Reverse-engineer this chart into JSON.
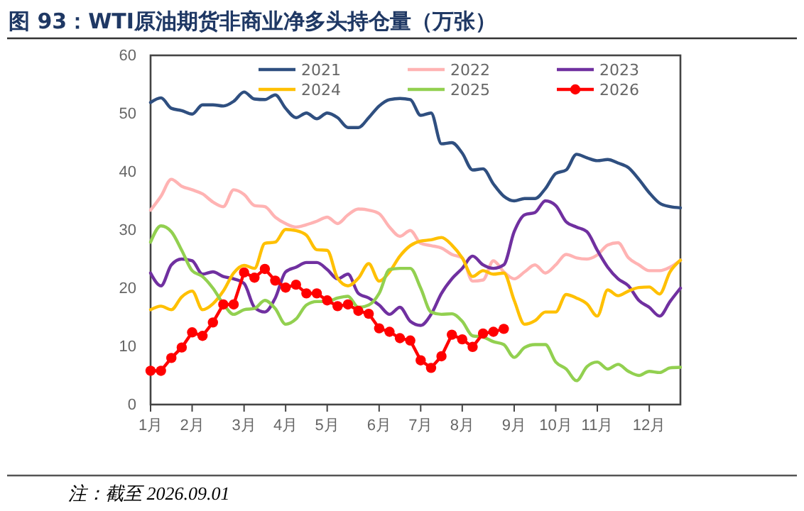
{
  "chart_data": {
    "type": "line",
    "title": "图 93：WTI原油期货非商业净多头持仓量（万张）",
    "annotations": [
      "注：截至 2026.09.01"
    ],
    "categories": [
      "1月",
      null,
      null,
      null,
      "2月",
      null,
      null,
      null,
      null,
      "3月",
      null,
      null,
      null,
      "4月",
      null,
      null,
      null,
      "5月",
      null,
      null,
      null,
      null,
      "6月",
      null,
      null,
      null,
      "7月",
      null,
      null,
      null,
      "8月",
      null,
      null,
      null,
      null,
      "9月",
      null,
      null,
      null,
      "10月",
      null,
      null,
      null,
      "11月",
      null,
      null,
      null,
      null,
      "12月",
      null,
      null,
      null
    ],
    "ylim": [
      0,
      60
    ],
    "yticks": [
      0,
      10,
      20,
      30,
      40,
      50,
      60
    ],
    "grid": false,
    "legend": "top",
    "line_style": "solid",
    "series": [
      {
        "name": "2021",
        "color": "#2f4f80",
        "marker": "none",
        "values": [
          51.9,
          52.7,
          50.9,
          50.5,
          49.9,
          51.5,
          51.5,
          51.3,
          52.1,
          53.7,
          52.5,
          52.4,
          53.2,
          50.9,
          49.3,
          50.1,
          49.1,
          50.1,
          49.3,
          47.6,
          47.6,
          49.3,
          51.3,
          52.4,
          52.6,
          52.4,
          49.7,
          50.1,
          44.8,
          45,
          43.2,
          40.3,
          40.5,
          37.9,
          35.8,
          35.0,
          35.4,
          35.4,
          37.1,
          39.7,
          40.3,
          43,
          42.4,
          41.9,
          42.1,
          41.5,
          40.7,
          38.7,
          36.4,
          34.6,
          34.0,
          33.8
        ]
      },
      {
        "name": "2022",
        "color": "#ffb3b3",
        "marker": "none",
        "values": [
          33.4,
          35.8,
          38.7,
          37.5,
          36.9,
          36.2,
          34.8,
          34,
          36.9,
          36.1,
          34.2,
          34,
          32.2,
          31.1,
          30.5,
          30.9,
          31.5,
          32.2,
          31.1,
          32.6,
          33.6,
          33.4,
          32.8,
          30.5,
          28.9,
          29.9,
          27.7,
          27.3,
          26.9,
          25.8,
          25.2,
          21.2,
          21.4,
          24.7,
          22.8,
          21.6,
          22.8,
          24,
          22.6,
          24,
          25.8,
          25.2,
          25,
          25.7,
          27.4,
          27.8,
          25.2,
          24,
          23,
          23,
          23.6,
          24.8
        ]
      },
      {
        "name": "2023",
        "color": "#7030a0",
        "marker": "none",
        "values": [
          22.6,
          20.4,
          24,
          25,
          24.7,
          22.4,
          22.8,
          22,
          21.6,
          20.8,
          16.7,
          15.9,
          18.3,
          22.8,
          23.6,
          24.4,
          24.4,
          23.2,
          21.6,
          22.4,
          19.1,
          18.3,
          17.1,
          15.5,
          16.7,
          14.3,
          13.6,
          15.5,
          19.1,
          21.6,
          23.4,
          25.5,
          24,
          23.4,
          24,
          29.7,
          32.6,
          33,
          35,
          34.2,
          31.4,
          30.5,
          29.7,
          26.5,
          23.6,
          21.6,
          20.4,
          17.9,
          16.7,
          15.2,
          17.7,
          20
        ]
      },
      {
        "name": "2024",
        "color": "#ffc000",
        "marker": "none",
        "values": [
          16.3,
          16.9,
          16.3,
          18.5,
          19.5,
          16.3,
          17.3,
          19.5,
          22.6,
          23.9,
          23.4,
          27.7,
          27.9,
          30.1,
          29.9,
          29.1,
          26.6,
          26.5,
          21.7,
          20.4,
          21.7,
          24.2,
          21.2,
          22.8,
          25.5,
          27.3,
          28.1,
          28.3,
          28.7,
          27.4,
          25.2,
          22,
          23,
          22.4,
          22.6,
          17.9,
          13.8,
          14.4,
          15.9,
          15.9,
          18.9,
          18.3,
          17.3,
          15.2,
          19.7,
          18.7,
          19.5,
          20.1,
          20.2,
          19,
          22.8,
          24.8
        ]
      },
      {
        "name": "2025",
        "color": "#92d050",
        "marker": "none",
        "values": [
          27.9,
          30.7,
          29.7,
          26.5,
          23,
          22,
          20,
          17.3,
          15.5,
          16.3,
          16.5,
          17.9,
          16.5,
          13.8,
          14.7,
          17.1,
          17.7,
          17.7,
          18.3,
          18.6,
          16.7,
          17.1,
          19.1,
          23.2,
          23.4,
          23.4,
          20,
          15.9,
          15.5,
          15.6,
          14.3,
          11.8,
          11.6,
          10.8,
          10.3,
          8.1,
          9.8,
          10.3,
          10.3,
          7.3,
          6.1,
          4.1,
          6.5,
          7.3,
          6.1,
          6.9,
          5.7,
          5.0,
          5.7,
          5.5,
          6.3,
          6.4
        ]
      },
      {
        "name": "2026",
        "color": "#ff0000",
        "marker": "circle",
        "values": [
          5.8,
          5.8,
          8,
          9.8,
          12.4,
          11.8,
          14.1,
          17.2,
          17.2,
          22.7,
          21.8,
          23.3,
          21.3,
          20.1,
          20.6,
          19.1,
          19.1,
          17.9,
          16.9,
          17.2,
          16.1,
          15.6,
          13.1,
          12.5,
          11.4,
          11,
          7.6,
          6.3,
          8.3,
          12,
          11.2,
          9.9,
          12.2,
          12.5,
          13.0,
          null,
          null,
          null,
          null,
          null,
          null,
          null,
          null,
          null,
          null,
          null,
          null,
          null,
          null,
          null,
          null,
          null
        ]
      }
    ]
  }
}
